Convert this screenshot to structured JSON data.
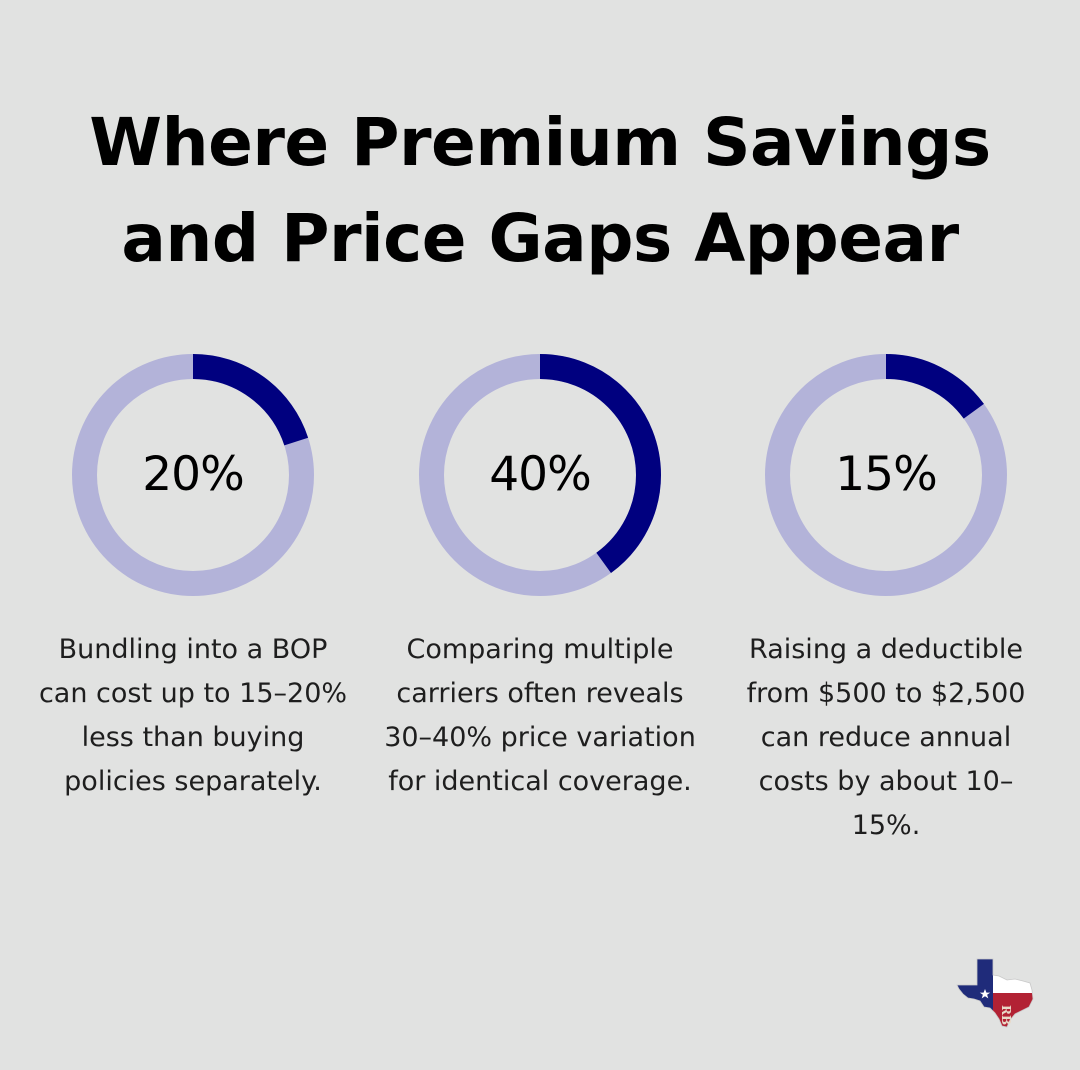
{
  "chart_data": {
    "type": "donut",
    "title_lines": [
      "Where Premium Savings",
      "and Price Gaps Appear"
    ],
    "colors": {
      "filled": "#00007f",
      "track": "#b3b3d9",
      "background": "#e1e2e1"
    },
    "items": [
      {
        "value": 20,
        "label": "20%",
        "caption": "Bundling into a BOP can cost up to 15–20% less than buying policies separately."
      },
      {
        "value": 40,
        "label": "40%",
        "caption": "Comparing multiple carriers often reveals 30–40% price variation for identical coverage."
      },
      {
        "value": 15,
        "label": "15%",
        "caption": "Raising a deductible from $500 to $2,500 can reduce annual costs by about 10–15%."
      }
    ]
  },
  "logo": {
    "icon": "texas-flag-map-icon",
    "monogram": "RB"
  }
}
